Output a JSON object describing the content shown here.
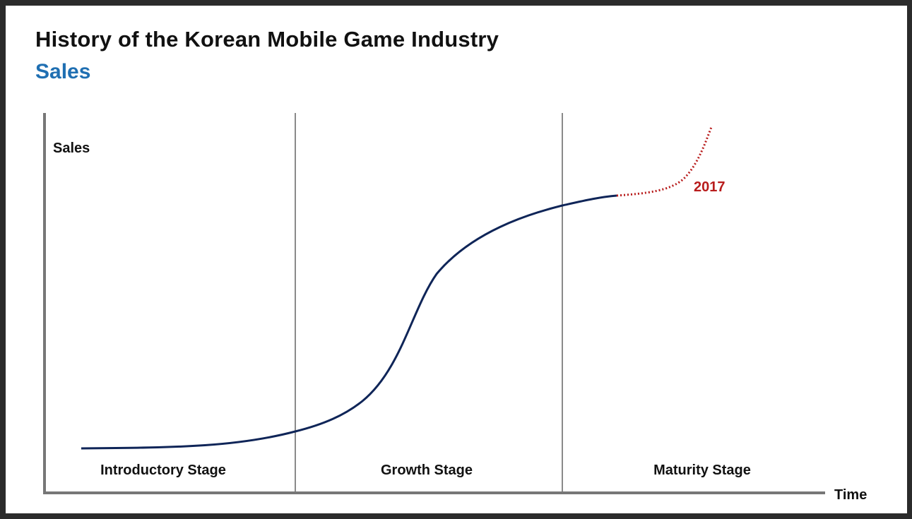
{
  "title": "History of the Korean Mobile Game Industry",
  "subtitle": "Sales",
  "diagram": {
    "y_axis_label": "Sales",
    "x_axis_label": "Time",
    "stages": [
      "Introductory Stage",
      "Growth Stage",
      "Maturity Stage"
    ],
    "annotation": "2017",
    "colors": {
      "curve": "#0f2558",
      "projection": "#b81c1c",
      "axis": "#777777",
      "divider": "#8a8a8a",
      "subtitle": "#1f6fb2"
    }
  }
}
